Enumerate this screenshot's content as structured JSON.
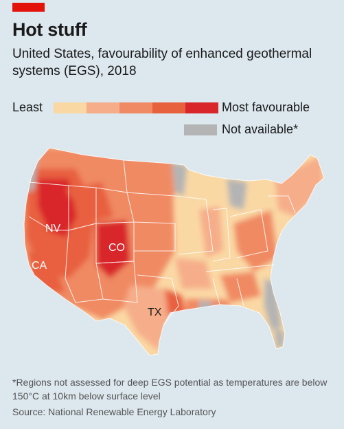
{
  "header": {
    "title": "Hot stuff",
    "subtitle": "United States, favourability of enhanced geothermal systems (EGS), 2018"
  },
  "legend": {
    "least_label": "Least",
    "most_label": "Most favourable",
    "not_available_label": "Not available*",
    "scale_colors": [
      "#fad8a4",
      "#f6ae8a",
      "#f08a64",
      "#e8613f",
      "#d9262a"
    ],
    "not_available_color": "#b4b4b4"
  },
  "map": {
    "labels": {
      "nv": "NV",
      "ca": "CA",
      "co": "CO",
      "tx": "TX"
    },
    "colors": {
      "background": "#dce7ee",
      "state_borders": "#ffffff"
    }
  },
  "footer": {
    "footnote": "*Regions not assessed for deep EGS potential as temperatures are below 150°C at 10km below surface level",
    "source": "Source: National Renewable Energy Laboratory"
  }
}
